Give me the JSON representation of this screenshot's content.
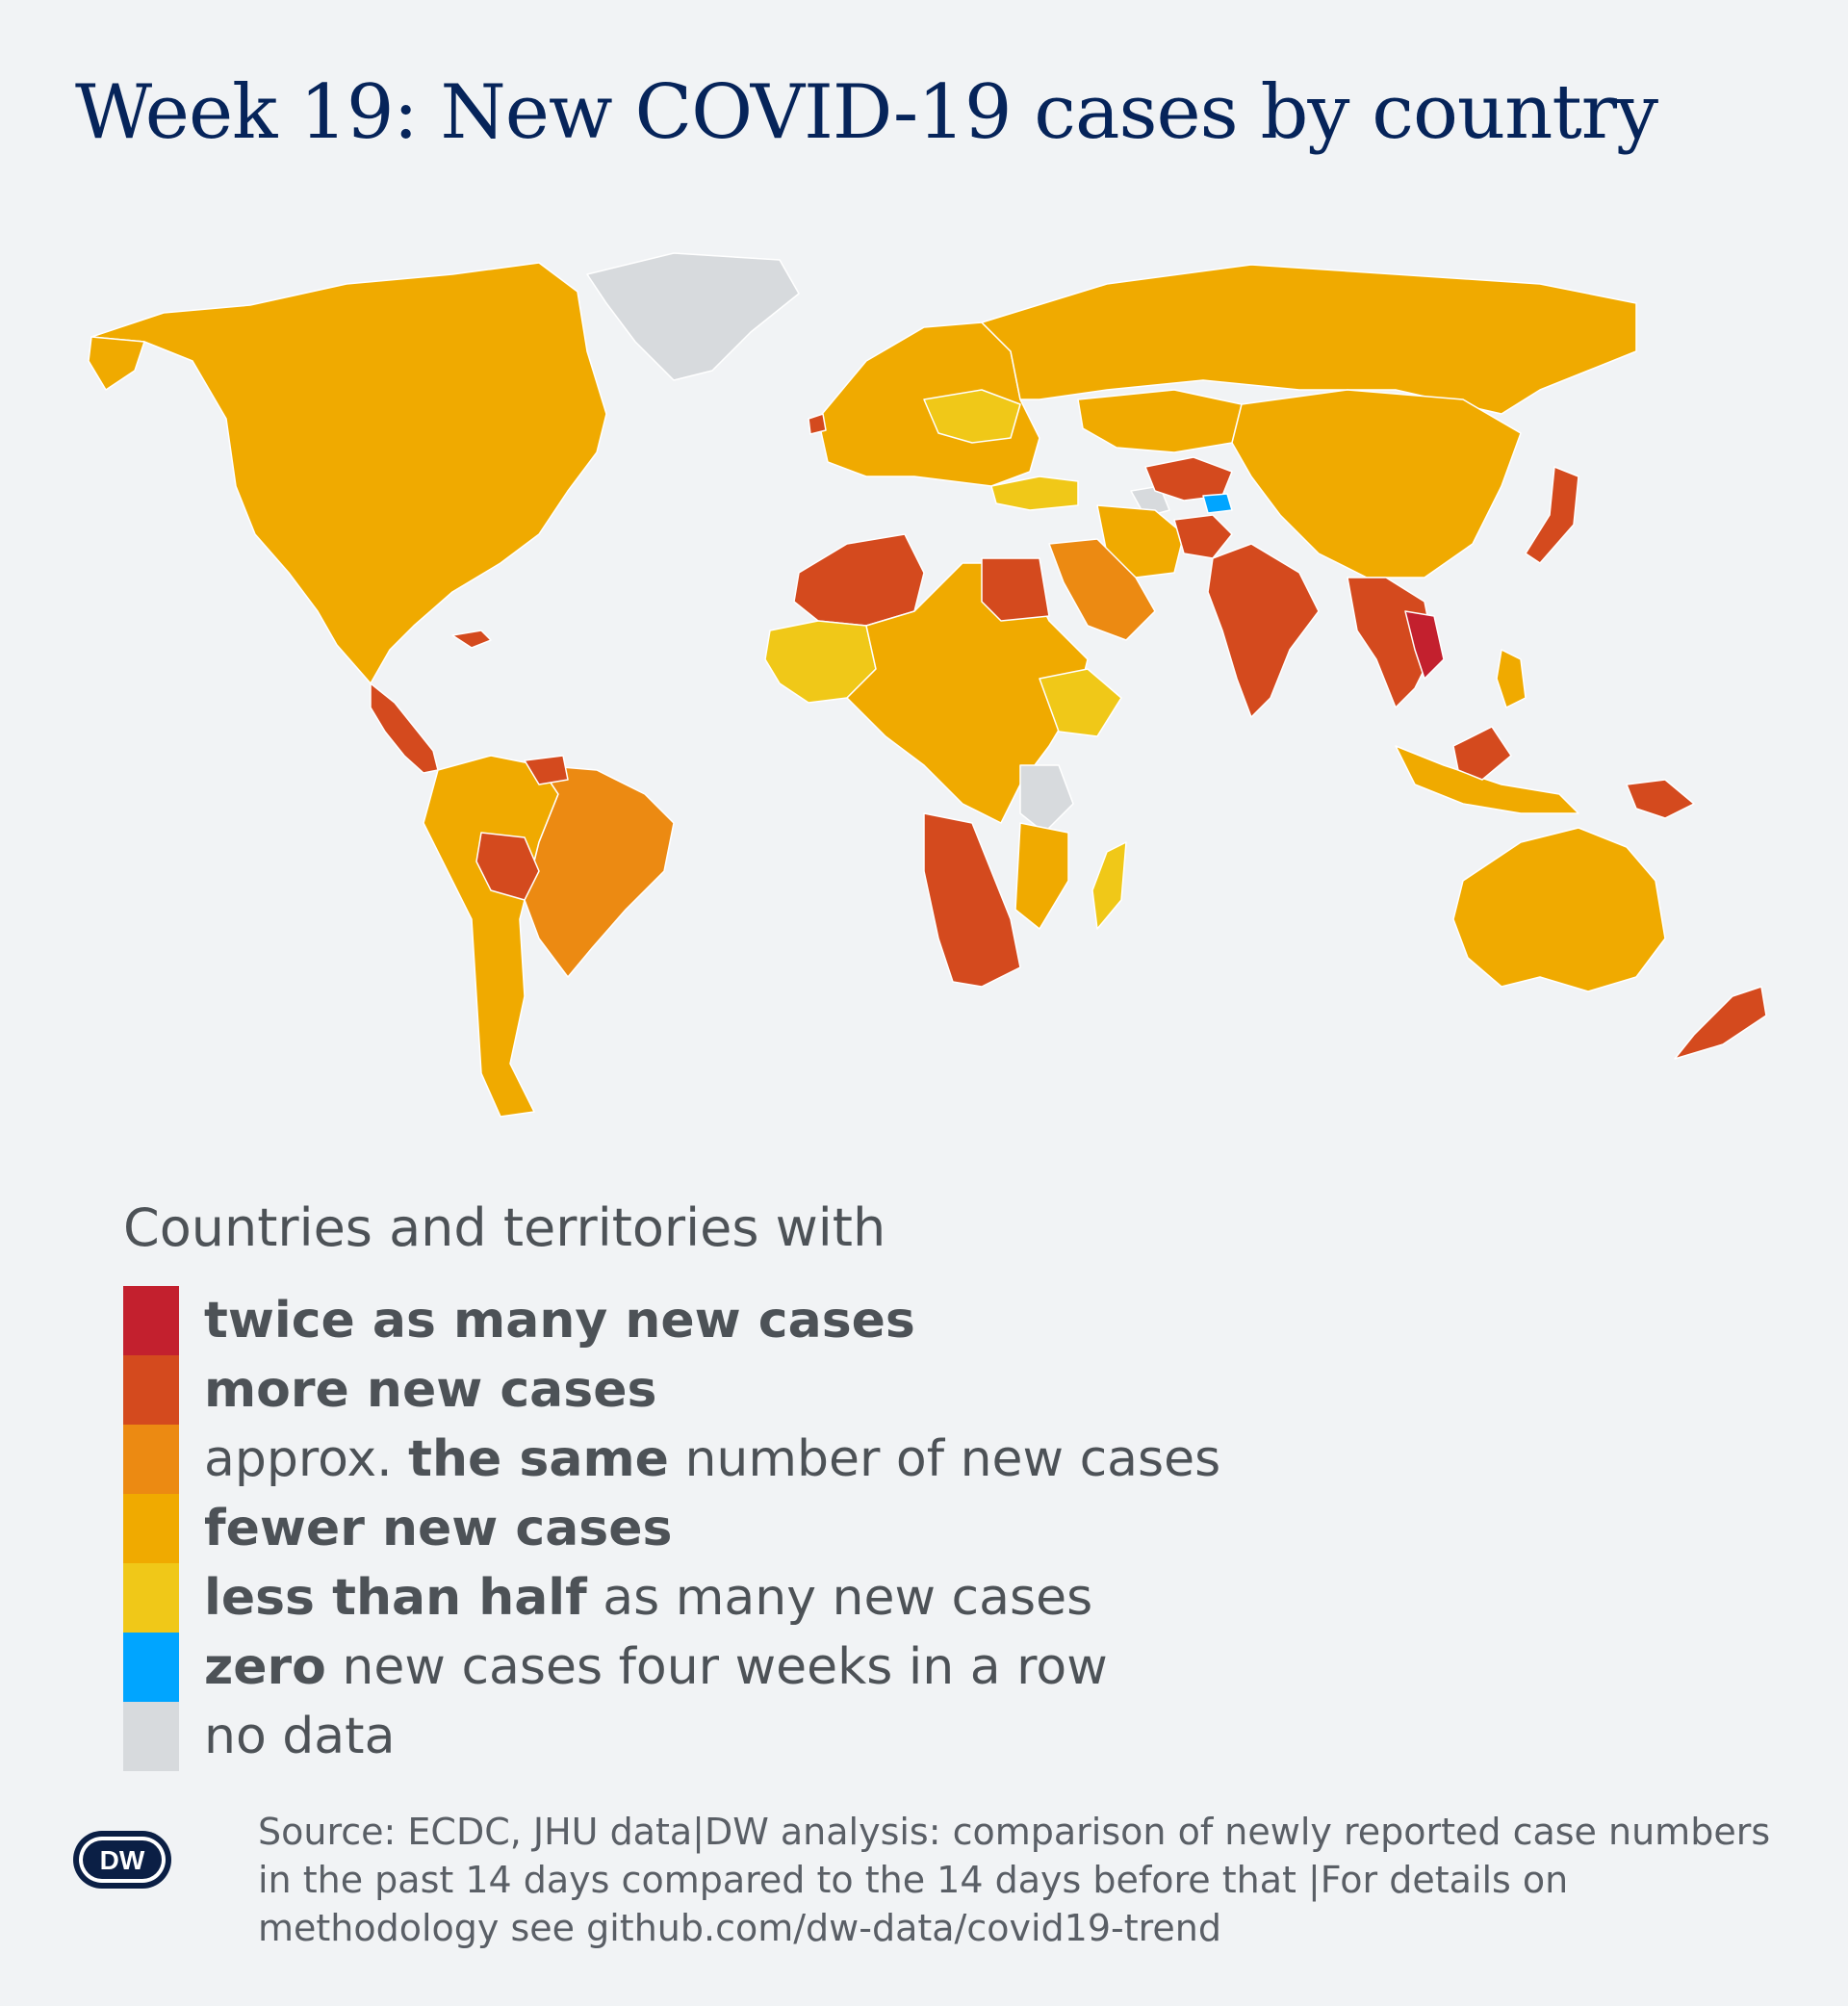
{
  "title": "Week 19: New COVID-19 cases by country",
  "colors": {
    "background": "#f1f3f5",
    "ocean": "#f1f3f5",
    "twice": "#c3202e",
    "more": "#d44a1e",
    "same": "#ec8a12",
    "fewer": "#f0aa00",
    "half": "#f0c818",
    "zero": "#00a5ff",
    "nodata": "#d7dadd",
    "dw_logo": "#0b1f45"
  },
  "legend": {
    "heading": "Countries and territories with",
    "items": [
      {
        "key": "twice",
        "pre": "",
        "bold": "twice as many new cases",
        "post": ""
      },
      {
        "key": "more",
        "pre": "",
        "bold": "more new cases",
        "post": ""
      },
      {
        "key": "same",
        "pre": "approx. ",
        "bold": "the same",
        "post": " number of new cases"
      },
      {
        "key": "fewer",
        "pre": "",
        "bold": "fewer new cases",
        "post": ""
      },
      {
        "key": "half",
        "pre": "",
        "bold": "less than half",
        "post": " as many new cases"
      },
      {
        "key": "zero",
        "pre": "",
        "bold": "zero",
        "post": " new cases four weeks in a row"
      },
      {
        "key": "nodata",
        "pre": "",
        "bold": "",
        "post": "no data"
      }
    ]
  },
  "logo_text": "DW",
  "source": "Source: ECDC, JHU data|DW analysis: comparison of newly reported case numbers in the past 14 days compared to the 14 days before that |For details on methodology see github.com/dw-data/covid19-trend"
}
